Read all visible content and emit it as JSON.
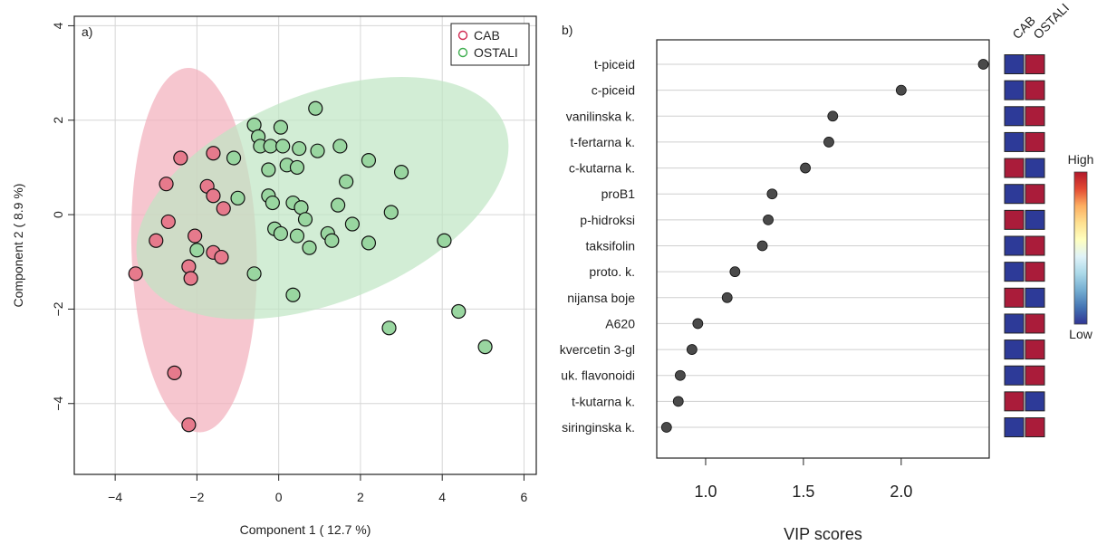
{
  "chart_data": [
    {
      "type": "scatter",
      "panel_label": "a)",
      "xlabel": "Component 1 ( 12.7 %)",
      "ylabel": "Component 2 ( 8.9 %)",
      "xlim": [
        -5,
        6.3
      ],
      "ylim": [
        -5.5,
        4.2
      ],
      "xticks": [
        -4,
        -2,
        0,
        2,
        4,
        6
      ],
      "yticks": [
        -4,
        -2,
        0,
        2,
        4
      ],
      "grid": true,
      "legend": {
        "placement": "top-right",
        "entries": [
          "CAB",
          "OSTALI"
        ]
      },
      "colors": {
        "CAB": "#e67a8c",
        "OSTALI": "#99d6a0",
        "CAB_ellipse": "#f2aebb",
        "OSTALI_ellipse": "#bfe6c3"
      },
      "ellipses": [
        {
          "name": "CAB",
          "center": [
            -2.07,
            -0.75
          ],
          "semi_axes": [
            1.53,
            3.86
          ],
          "rotation_deg": -2
        },
        {
          "name": "OSTALI",
          "center": [
            1.07,
            0.35
          ],
          "semi_axes": [
            4.8,
            2.2
          ],
          "rotation_deg": -22
        }
      ],
      "series": [
        {
          "name": "CAB",
          "points": [
            [
              -2.4,
              1.2
            ],
            [
              -1.6,
              1.3
            ],
            [
              -1.75,
              0.6
            ],
            [
              -1.6,
              0.4
            ],
            [
              -1.35,
              0.13
            ],
            [
              -2.75,
              0.65
            ],
            [
              -2.7,
              -0.15
            ],
            [
              -3.0,
              -0.55
            ],
            [
              -2.05,
              -0.45
            ],
            [
              -1.6,
              -0.8
            ],
            [
              -1.4,
              -0.9
            ],
            [
              -2.2,
              -1.1
            ],
            [
              -2.15,
              -1.35
            ],
            [
              -3.5,
              -1.25
            ],
            [
              -2.55,
              -3.35
            ],
            [
              -2.2,
              -4.45
            ]
          ]
        },
        {
          "name": "OSTALI",
          "points": [
            [
              0.9,
              2.25
            ],
            [
              -0.6,
              1.9
            ],
            [
              0.05,
              1.85
            ],
            [
              -0.5,
              1.65
            ],
            [
              -0.45,
              1.45
            ],
            [
              -0.2,
              1.45
            ],
            [
              0.1,
              1.45
            ],
            [
              0.5,
              1.4
            ],
            [
              0.95,
              1.35
            ],
            [
              1.5,
              1.45
            ],
            [
              2.2,
              1.15
            ],
            [
              3.0,
              0.9
            ],
            [
              -1.1,
              1.2
            ],
            [
              -0.25,
              0.95
            ],
            [
              0.2,
              1.05
            ],
            [
              0.45,
              1.0
            ],
            [
              1.65,
              0.7
            ],
            [
              -1.0,
              0.35
            ],
            [
              -0.25,
              0.4
            ],
            [
              -0.15,
              0.25
            ],
            [
              0.35,
              0.25
            ],
            [
              0.55,
              0.15
            ],
            [
              1.45,
              0.2
            ],
            [
              0.65,
              -0.1
            ],
            [
              1.8,
              -0.2
            ],
            [
              2.75,
              0.05
            ],
            [
              -0.1,
              -0.3
            ],
            [
              0.05,
              -0.4
            ],
            [
              0.45,
              -0.45
            ],
            [
              0.75,
              -0.7
            ],
            [
              1.2,
              -0.4
            ],
            [
              1.3,
              -0.55
            ],
            [
              2.2,
              -0.6
            ],
            [
              4.05,
              -0.55
            ],
            [
              -2.0,
              -0.75
            ],
            [
              -0.6,
              -1.25
            ],
            [
              0.35,
              -1.7
            ],
            [
              2.7,
              -2.4
            ],
            [
              4.4,
              -2.05
            ],
            [
              5.05,
              -2.8
            ]
          ]
        }
      ]
    },
    {
      "type": "scatter",
      "panel_label": "b)",
      "xlabel": "VIP scores",
      "xlim": [
        0.75,
        2.45
      ],
      "xticks": [
        1.0,
        1.5,
        2.0
      ],
      "categories": [
        "t-piceid",
        "c-piceid",
        "vanilinska k.",
        "t-fertarna k.",
        "c-kutarna k.",
        "proB1",
        "p-hidroksi",
        "taksifolin",
        "proto. k.",
        "nijansa boje",
        "A620",
        "kvercetin 3-gl",
        "uk. flavonoidi",
        "t-kutarna k.",
        "siringinska k."
      ],
      "values": [
        2.42,
        2.0,
        1.65,
        1.63,
        1.51,
        1.34,
        1.32,
        1.29,
        1.15,
        1.11,
        0.96,
        0.93,
        0.87,
        0.86,
        0.8
      ],
      "heatmap": {
        "columns": [
          "CAB",
          "OSTALI"
        ],
        "cells": [
          [
            "Low",
            "High"
          ],
          [
            "Low",
            "High"
          ],
          [
            "Low",
            "High"
          ],
          [
            "Low",
            "High"
          ],
          [
            "High",
            "Low"
          ],
          [
            "Low",
            "High"
          ],
          [
            "High",
            "Low"
          ],
          [
            "Low",
            "High"
          ],
          [
            "Low",
            "High"
          ],
          [
            "High",
            "Low"
          ],
          [
            "Low",
            "High"
          ],
          [
            "Low",
            "High"
          ],
          [
            "Low",
            "High"
          ],
          [
            "High",
            "Low"
          ],
          [
            "Low",
            "High"
          ]
        ],
        "colors": {
          "High": "#aa1c3a",
          "Low": "#2d3a98"
        },
        "colorbar": {
          "top_label": "High",
          "bottom_label": "Low",
          "stops": [
            "#b2182b",
            "#e34a33",
            "#fdae61",
            "#fee090",
            "#ffffbf",
            "#e0f3f8",
            "#abd9e9",
            "#74add1",
            "#4575b4",
            "#313695"
          ]
        }
      }
    }
  ]
}
